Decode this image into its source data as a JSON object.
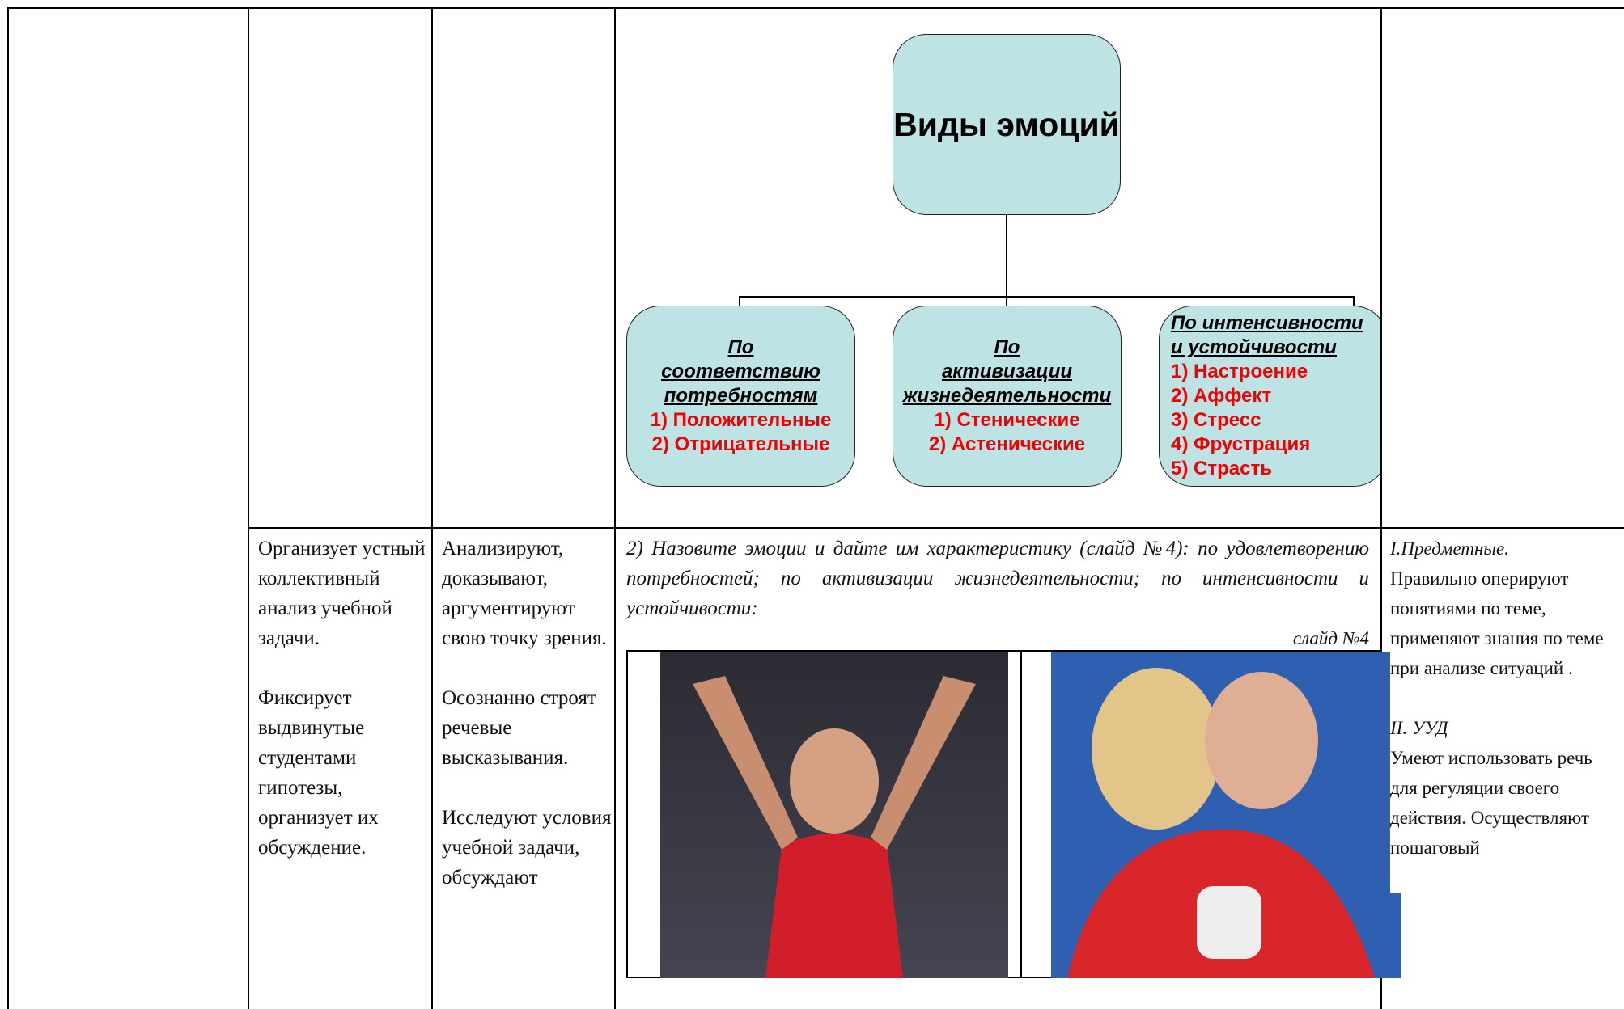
{
  "diagram": {
    "title": "Виды эмоций",
    "branches": [
      {
        "heading": [
          "По",
          "соответствию",
          "потребностям"
        ],
        "items": [
          "1) Положительные",
          "2) Отрицательные"
        ]
      },
      {
        "heading": [
          "По",
          "активизации",
          "жизнедеятельности"
        ],
        "items": [
          "1) Стенические",
          "2) Астенические"
        ]
      },
      {
        "heading": [
          "По интенсивности",
          "и устойчивости"
        ],
        "items": [
          "1) Настроение",
          "2) Аффект",
          "3) Стресс",
          "4) Фрустрация",
          "5) Страсть"
        ]
      }
    ]
  },
  "row": {
    "teacher": [
      "Организует устный коллективный анализ учебной задачи.",
      "Фиксирует выдвинутые студентами гипотезы, организует их обсуждение."
    ],
    "students": [
      "Анализируют, доказывают, аргументируют свою точку зрения.",
      "Осознанно строят речевые высказывания.",
      "Исследуют условия учебной задачи, обсуждают"
    ],
    "task": {
      "text": "2) Назовите эмоции и дайте им характеристику (слайд №4): по удовлетворению потребностей; по активизации жизнедеятельности; по интенсивности и устойчивости:",
      "slide": "слайд №4"
    },
    "results": [
      {
        "heading": "I.Предметные.",
        "text": "Правильно оперируют понятиями по теме, применяют знания по теме при анализе ситуаций ."
      },
      {
        "heading": "II. УУД",
        "text": "Умеют использовать речь для регуляции своего действия. Осуществляют пошаговый"
      }
    ]
  }
}
